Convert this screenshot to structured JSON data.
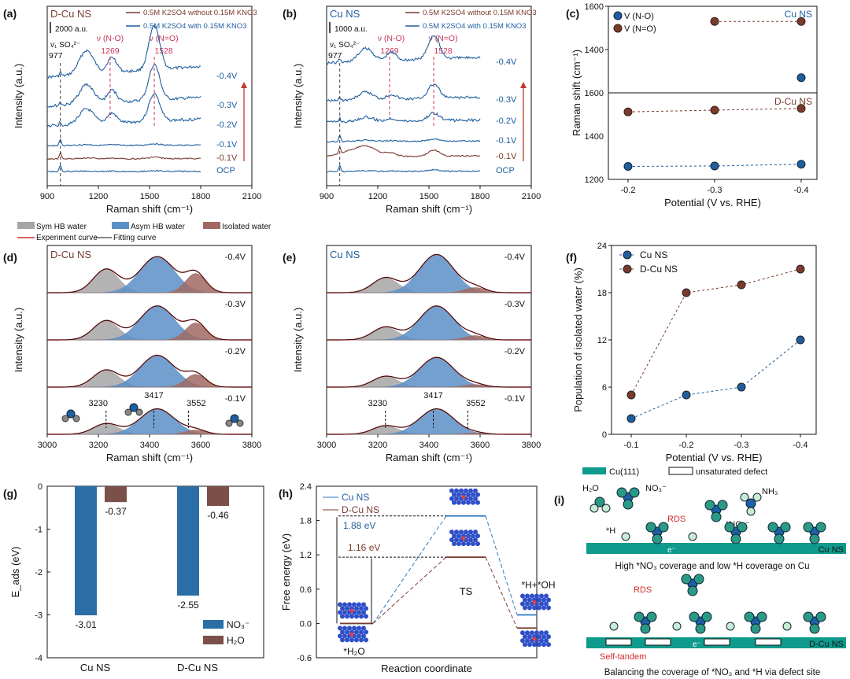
{
  "colors": {
    "blue": "#2c6fa8",
    "brown": "#7a3a2e",
    "red": "#c8375a",
    "dblue": "#1f5fa0",
    "teal": "#0e9a8c"
  },
  "panels": {
    "a": {
      "letter": "(a)",
      "sample": "D-Cu NS",
      "legend": [
        "0.5M K2SO4 without 0.15M KNO3",
        "0.5M K2SO4 with 0.15M KNO3"
      ],
      "scalebar": "2000 a.u.",
      "so4_label": "v₁ SO₄²⁻",
      "so4_pos": "977",
      "no_label": "ν (N-O)",
      "no_pos": "1269",
      "n2o_label": "ν (N=O)",
      "n2o_pos": "1528",
      "potentials": [
        "-0.4V",
        "-0.3V",
        "-0.2V",
        "-0.1V",
        "-0.1V",
        "OCP"
      ],
      "xlabel": "Raman shift (cm⁻¹)",
      "ylabel": "Intensity (a.u.)",
      "xticks": [
        "900",
        "1200",
        "1500",
        "1800",
        "2100"
      ]
    },
    "b": {
      "letter": "(b)",
      "sample": "Cu NS",
      "legend": [
        "0.5M K2SO4 without 0.15M KNO3",
        "0.5M K2SO4 with 0.15M KNO3"
      ],
      "scalebar": "1000 a.u.",
      "so4_label": "v₁ SO₄²⁻",
      "so4_pos": "977",
      "no_label": "ν (N-O)",
      "no_pos": "1269",
      "n2o_label": "ν (N=O)",
      "n2o_pos": "1528",
      "potentials": [
        "-0.4V",
        "-0.3V",
        "-0.2V",
        "-0.1V",
        "-0.1V",
        "OCP"
      ],
      "xlabel": "Raman shift (cm⁻¹)",
      "ylabel": "Intensity (a.u.)",
      "xticks": [
        "900",
        "1200",
        "1500",
        "1800",
        "2100"
      ]
    },
    "c": {
      "letter": "(c)",
      "legend": [
        "V (N-O)",
        "V (N=O)"
      ],
      "top_label": "Cu NS",
      "bottom_label": "D-Cu NS",
      "xlabel": "Potential (V vs. RHE)",
      "ylabel": "Raman shift (cm⁻¹)",
      "xticks": [
        "-0.2",
        "-0.3",
        "-0.4"
      ],
      "yticks_top": [
        "1400",
        "1600"
      ],
      "yticks_bottom": [
        "1200",
        "1400",
        "1600"
      ]
    },
    "d": {
      "letter": "(d)",
      "sample": "D-Cu NS",
      "legend": [
        "Sym HB water",
        "Asym HB water",
        "Isolated water",
        "Experiment curve",
        "Fitting curve"
      ],
      "potentials": [
        "-0.4V",
        "-0.3V",
        "-0.2V",
        "-0.1V"
      ],
      "peaks": [
        "3230",
        "3417",
        "3552"
      ],
      "xlabel": "Raman shift (cm⁻¹)",
      "ylabel": "Intensity (a.u.)",
      "xticks": [
        "3000",
        "3200",
        "3400",
        "3600",
        "3800"
      ]
    },
    "e": {
      "letter": "(e)",
      "sample": "Cu NS",
      "potentials": [
        "-0.4V",
        "-0.3V",
        "-0.2V",
        "-0.1V"
      ],
      "peaks": [
        "3230",
        "3417",
        "3552"
      ],
      "xlabel": "Raman shift (cm⁻¹)",
      "ylabel": "Intensity (a.u.)",
      "xticks": [
        "3000",
        "3200",
        "3400",
        "3600",
        "3800"
      ]
    },
    "f": {
      "letter": "(f)",
      "legend": [
        "Cu NS",
        "D-Cu NS"
      ],
      "xlabel": "Potential (V vs. RHE)",
      "ylabel": "Population of isolated water (%)",
      "xticks": [
        "-0.1",
        "-0.2",
        "-0.3",
        "-0.4"
      ],
      "yticks": [
        "0",
        "6",
        "12",
        "18",
        "24"
      ]
    },
    "g": {
      "letter": "(g)",
      "ylabel": "E_ads (eV)",
      "legend": [
        "NO₃⁻",
        "H₂O"
      ],
      "xticks": [
        "Cu NS",
        "D-Cu NS"
      ],
      "yticks": [
        "0",
        "-1",
        "-2",
        "-3",
        "-4"
      ],
      "value_labels": [
        "-3.01",
        "-0.37",
        "-2.55",
        "-0.46"
      ]
    },
    "h": {
      "letter": "(h)",
      "legend": [
        "Cu NS",
        "D-Cu NS"
      ],
      "xlabel": "Reaction coordinate",
      "ylabel": "Free energy (eV)",
      "yticks": [
        "2.4",
        "1.8",
        "1.2",
        "0.6",
        "0.0",
        "-0.6"
      ],
      "barrier1": "1.88 eV",
      "barrier2": "1.16 eV",
      "state_is": "*H₂O",
      "state_ts": "TS",
      "state_fs": "*H+*OH"
    },
    "i": {
      "letter": "(i)",
      "legend": [
        "Cu(111)",
        "unsaturated defect"
      ],
      "h2o": "H₂O",
      "no3": "NO₃⁻",
      "rds": "RDS",
      "no2": "*NO₂⁻",
      "nh3": "NH₃",
      "h": "*H",
      "e": "e⁻",
      "cu_ns": "Cu NS",
      "dcu_ns": "D-Cu NS",
      "caption1": "High *NO₃ coverage and low *H coverage on Cu",
      "caption2": "Balancing the coverage of *NO₃ and *H via defect site",
      "rds2": "RDS",
      "self_tandem": "Self-tandem"
    }
  },
  "chart_data": [
    {
      "type": "line",
      "id": "c",
      "title": "",
      "xlabel": "Potential (V vs. RHE)",
      "ylabel": "Raman shift (cm-1)",
      "categories": [
        "-0.2",
        "-0.3",
        "-0.4"
      ],
      "series": [
        {
          "name": "Cu NS V (N=O)",
          "values": [
            null,
            1530,
            1530
          ]
        },
        {
          "name": "Cu NS V (N-O)",
          "values": [
            null,
            null,
            1270
          ]
        },
        {
          "name": "D-Cu NS V (N=O)",
          "values": [
            1512,
            1520,
            1528
          ]
        },
        {
          "name": "D-Cu NS V (N-O)",
          "values": [
            1260,
            1262,
            1270
          ]
        }
      ]
    },
    {
      "type": "line",
      "id": "f",
      "xlabel": "Potential (V vs. RHE)",
      "ylabel": "Population of isolated water (%)",
      "categories": [
        "-0.1",
        "-0.2",
        "-0.3",
        "-0.4"
      ],
      "ylim": [
        0,
        24
      ],
      "series": [
        {
          "name": "Cu NS",
          "values": [
            2,
            5,
            6,
            12
          ]
        },
        {
          "name": "D-Cu NS",
          "values": [
            5,
            18,
            19,
            21
          ]
        }
      ]
    },
    {
      "type": "bar",
      "id": "g",
      "ylabel": "E_ads (eV)",
      "categories": [
        "Cu NS",
        "D-Cu NS"
      ],
      "ylim": [
        -4,
        0
      ],
      "series": [
        {
          "name": "NO3-",
          "values": [
            -3.01,
            -2.55
          ]
        },
        {
          "name": "H2O",
          "values": [
            -0.37,
            -0.46
          ]
        }
      ]
    },
    {
      "type": "line",
      "id": "h",
      "xlabel": "Reaction coordinate",
      "ylabel": "Free energy (eV)",
      "categories": [
        "*H2O",
        "TS",
        "*H+*OH"
      ],
      "ylim": [
        -0.6,
        2.4
      ],
      "series": [
        {
          "name": "Cu NS",
          "values": [
            0.0,
            1.88,
            0.15
          ]
        },
        {
          "name": "D-Cu NS",
          "values": [
            0.0,
            1.16,
            -0.08
          ]
        }
      ]
    }
  ]
}
